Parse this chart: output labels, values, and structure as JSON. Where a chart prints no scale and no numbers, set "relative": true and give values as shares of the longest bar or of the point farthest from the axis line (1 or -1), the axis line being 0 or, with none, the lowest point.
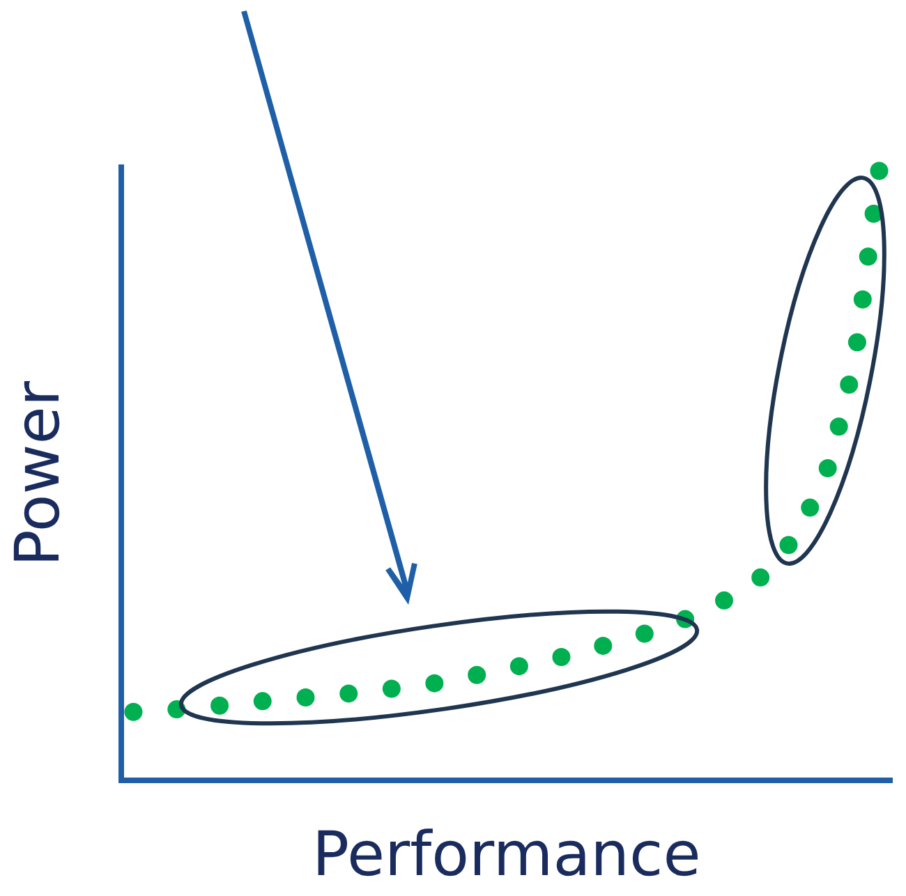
{
  "chart_data": {
    "type": "line",
    "relative": true,
    "xlabel": "Performance",
    "ylabel": "Power",
    "marker": "none",
    "line_style": "dotted",
    "grid": false,
    "legend": false,
    "categories": [
      null,
      null,
      null,
      null,
      null,
      null,
      null,
      null,
      null,
      null,
      null,
      null,
      null,
      null,
      null,
      null,
      null,
      null,
      null,
      null,
      null,
      null,
      null,
      null,
      null,
      null,
      null,
      null,
      null,
      null,
      null
    ],
    "series": [
      {
        "color": "#00b050",
        "values": [
          0.112,
          0.114,
          0.117,
          0.12,
          0.125,
          0.129,
          0.132,
          0.136,
          0.14,
          0.143,
          0.148,
          0.153,
          0.158,
          0.165,
          0.174,
          0.182,
          0.191,
          0.199,
          0.211,
          0.221,
          0.233,
          0.245,
          0.26,
          0.278,
          0.299,
          0.323,
          0.362,
          0.427,
          0.517,
          0.684,
          1
        ]
      }
    ]
  }
}
